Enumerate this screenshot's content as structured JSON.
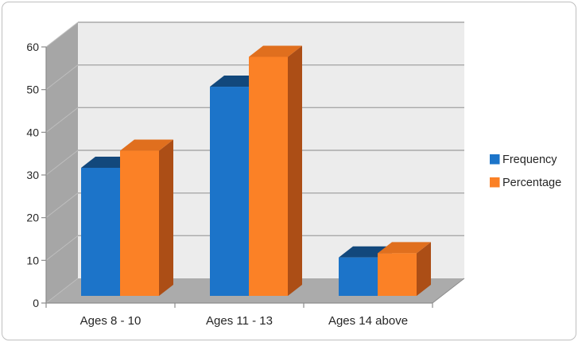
{
  "chart_data": {
    "type": "bar",
    "view": "3d-clustered-column",
    "title": "",
    "xlabel": "",
    "ylabel": "",
    "categories": [
      "Ages 8 - 10",
      "Ages 11 - 13",
      "Ages 14 above"
    ],
    "series": [
      {
        "name": "Frequency",
        "values": [
          30,
          49,
          9
        ],
        "color": "#1C74C9",
        "color_top": "#12487C",
        "color_side": "#14599F"
      },
      {
        "name": "Percentage",
        "values": [
          34,
          56,
          10
        ],
        "color": "#FB8126",
        "color_top": "#E06F1E",
        "color_side": "#AC4E16"
      }
    ],
    "ylim": [
      0,
      60
    ],
    "ytick_step": 10,
    "ytick_labels": [
      "0",
      "10",
      "20",
      "30",
      "40",
      "50",
      "60"
    ],
    "grid": true,
    "legend_position": "right"
  },
  "colors": {
    "wall_back": "#ECECEC",
    "wall_left": "#A6A6A6",
    "floor": "#ABABAB",
    "gridline": "#A9A9A9",
    "wall_gridline": "#BFBFBF",
    "axis_line": "#8C8C8C",
    "label_text": "#262626",
    "frame_border": "#BFBFBF"
  }
}
